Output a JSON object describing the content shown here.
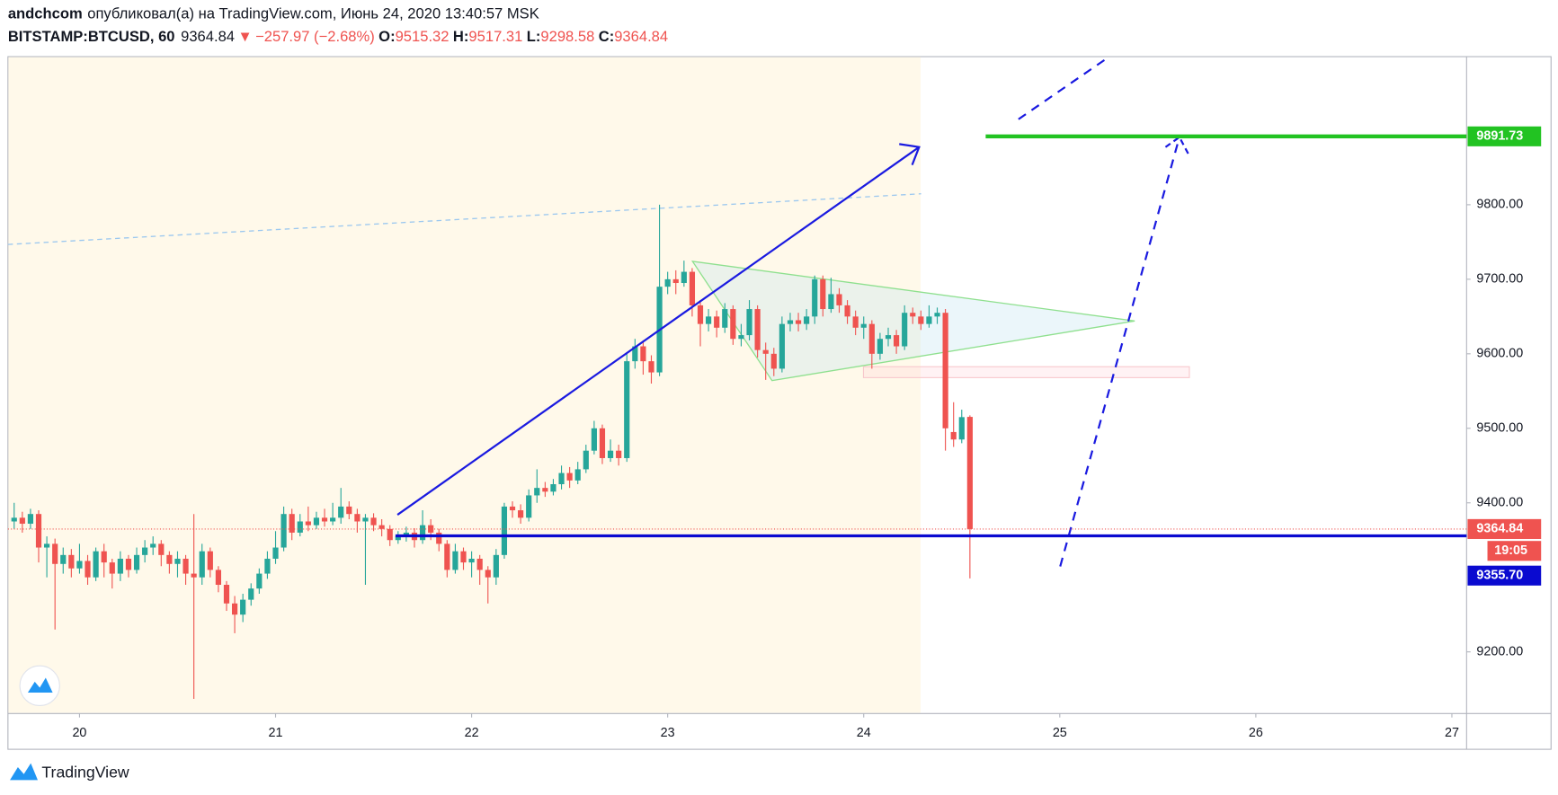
{
  "header": {
    "author": "andchcom",
    "published": "опубликовал(а) на TradingView.com, Июнь 24, 2020 13:40:57 MSK",
    "symbol": "BITSTAMP:BTCUSD, 60",
    "last": "9364.84",
    "arrow": "▼",
    "change": "−257.97 (−2.68%)",
    "o_label": "O:",
    "o": "9515.32",
    "h_label": "H:",
    "h": "9517.31",
    "l_label": "L:",
    "l": "9298.58",
    "c_label": "C:",
    "c": "9364.84"
  },
  "footer": {
    "brand": "TradingView"
  },
  "chart_data": {
    "type": "candlestick",
    "x": [
      -8,
      -7,
      -6,
      -5,
      -4,
      -3,
      -2,
      -1,
      0,
      1,
      2,
      3,
      4,
      5,
      6,
      7,
      8,
      9,
      10,
      11,
      12,
      13,
      14,
      15,
      16,
      17,
      18,
      19,
      20,
      21,
      22,
      23,
      24,
      25,
      26,
      27,
      28,
      29,
      30,
      31,
      32,
      33,
      34,
      35,
      36,
      37,
      38,
      39,
      40,
      41,
      42,
      43,
      44,
      45,
      46,
      47,
      48,
      49,
      50,
      51,
      52,
      53,
      54,
      55,
      56,
      57,
      58,
      59,
      60,
      61,
      62,
      63,
      64,
      65,
      66,
      67,
      68,
      69,
      70,
      71,
      72,
      73,
      74,
      75,
      76,
      77,
      78,
      79,
      80,
      81,
      82,
      83,
      84,
      85,
      86,
      87,
      88,
      89,
      90,
      91,
      92,
      93,
      94,
      95,
      96,
      97,
      98,
      99,
      100,
      101,
      102,
      103,
      104,
      105,
      106,
      107,
      108,
      109
    ],
    "open": [
      9375,
      9380,
      9372,
      9385,
      9340,
      9345,
      9318,
      9330,
      9312,
      9322,
      9300,
      9335,
      9320,
      9305,
      9325,
      9310,
      9330,
      9340,
      9345,
      9330,
      9318,
      9325,
      9305,
      9300,
      9335,
      9310,
      9290,
      9265,
      9250,
      9270,
      9285,
      9305,
      9325,
      9340,
      9385,
      9360,
      9375,
      9370,
      9380,
      9375,
      9380,
      9395,
      9385,
      9375,
      9380,
      9370,
      9365,
      9350,
      9355,
      9360,
      9350,
      9370,
      9360,
      9345,
      9310,
      9335,
      9320,
      9325,
      9310,
      9300,
      9330,
      9395,
      9390,
      9380,
      9410,
      9420,
      9415,
      9425,
      9440,
      9430,
      9445,
      9470,
      9500,
      9460,
      9470,
      9460,
      9590,
      9610,
      9590,
      9575,
      9690,
      9700,
      9695,
      9710,
      9665,
      9640,
      9650,
      9635,
      9660,
      9620,
      9625,
      9660,
      9605,
      9600,
      9580,
      9640,
      9645,
      9640,
      9650,
      9700,
      9660,
      9680,
      9665,
      9650,
      9635,
      9640,
      9600,
      9620,
      9625,
      9610,
      9655,
      9650,
      9640,
      9650,
      9655,
      9495,
      9485,
      9515.32
    ],
    "high": [
      9400,
      9388,
      9392,
      9390,
      9355,
      9352,
      9340,
      9338,
      9345,
      9330,
      9340,
      9345,
      9325,
      9335,
      9330,
      9340,
      9350,
      9355,
      9350,
      9335,
      9335,
      9330,
      9385,
      9345,
      9340,
      9315,
      9295,
      9275,
      9278,
      9292,
      9312,
      9335,
      9362,
      9395,
      9392,
      9385,
      9395,
      9388,
      9392,
      9400,
      9420,
      9402,
      9392,
      9385,
      9386,
      9378,
      9370,
      9362,
      9368,
      9366,
      9390,
      9378,
      9365,
      9350,
      9345,
      9340,
      9335,
      9330,
      9315,
      9338,
      9400,
      9402,
      9398,
      9418,
      9445,
      9428,
      9432,
      9450,
      9448,
      9455,
      9478,
      9510,
      9505,
      9485,
      9478,
      9602,
      9620,
      9618,
      9598,
      9800,
      9710,
      9712,
      9725,
      9715,
      9672,
      9660,
      9658,
      9668,
      9665,
      9640,
      9672,
      9665,
      9615,
      9608,
      9650,
      9655,
      9655,
      9660,
      9705,
      9705,
      9702,
      9688,
      9672,
      9658,
      9650,
      9645,
      9628,
      9635,
      9632,
      9665,
      9662,
      9658,
      9665,
      9662,
      9660,
      9535,
      9525,
      9517.31
    ],
    "low": [
      9365,
      9360,
      9365,
      9320,
      9300,
      9230,
      9305,
      9300,
      9305,
      9290,
      9295,
      9300,
      9285,
      9295,
      9300,
      9305,
      9320,
      9330,
      9315,
      9305,
      9300,
      9290,
      9137,
      9290,
      9300,
      9280,
      9255,
      9225,
      9240,
      9262,
      9278,
      9298,
      9318,
      9335,
      9350,
      9355,
      9362,
      9365,
      9368,
      9370,
      9372,
      9378,
      9360,
      9290,
      9362,
      9355,
      9342,
      9345,
      9348,
      9340,
      9345,
      9350,
      9335,
      9300,
      9305,
      9310,
      9300,
      9290,
      9265,
      9290,
      9325,
      9380,
      9372,
      9375,
      9400,
      9408,
      9410,
      9418,
      9420,
      9425,
      9440,
      9465,
      9452,
      9455,
      9450,
      9455,
      9580,
      9572,
      9560,
      9570,
      9680,
      9680,
      9690,
      9650,
      9610,
      9630,
      9622,
      9628,
      9612,
      9610,
      9618,
      9595,
      9565,
      9570,
      9575,
      9630,
      9630,
      9632,
      9640,
      9650,
      9655,
      9655,
      9640,
      9625,
      9620,
      9580,
      9592,
      9610,
      9600,
      9605,
      9640,
      9632,
      9635,
      9640,
      9470,
      9475,
      9480,
      9298.58
    ],
    "close": [
      9380,
      9372,
      9385,
      9340,
      9345,
      9318,
      9330,
      9312,
      9322,
      9300,
      9335,
      9320,
      9305,
      9325,
      9310,
      9330,
      9340,
      9345,
      9330,
      9318,
      9325,
      9305,
      9300,
      9335,
      9310,
      9290,
      9265,
      9250,
      9270,
      9285,
      9305,
      9325,
      9340,
      9385,
      9360,
      9375,
      9370,
      9380,
      9375,
      9380,
      9395,
      9385,
      9375,
      9380,
      9370,
      9365,
      9350,
      9355,
      9360,
      9350,
      9370,
      9360,
      9345,
      9310,
      9335,
      9320,
      9325,
      9310,
      9300,
      9330,
      9395,
      9390,
      9380,
      9410,
      9420,
      9415,
      9425,
      9440,
      9430,
      9445,
      9470,
      9500,
      9460,
      9470,
      9460,
      9590,
      9610,
      9590,
      9575,
      9690,
      9700,
      9695,
      9710,
      9665,
      9640,
      9650,
      9635,
      9660,
      9620,
      9625,
      9660,
      9605,
      9600,
      9580,
      9640,
      9645,
      9640,
      9650,
      9700,
      9660,
      9680,
      9665,
      9650,
      9635,
      9640,
      9600,
      9620,
      9625,
      9610,
      9655,
      9650,
      9640,
      9650,
      9655,
      9500,
      9485,
      9515,
      9364.84
    ],
    "up_color": "#26a69a",
    "down_color": "#ef5350",
    "xlim": [
      -8.76,
      169.8
    ],
    "xticks": [
      {
        "value": 0,
        "label": "20"
      },
      {
        "value": 24,
        "label": "21"
      },
      {
        "value": 48,
        "label": "22"
      },
      {
        "value": 72,
        "label": "23"
      },
      {
        "value": 96,
        "label": "24"
      },
      {
        "value": 120,
        "label": "25"
      },
      {
        "value": 144,
        "label": "26"
      },
      {
        "value": 168,
        "label": "27"
      }
    ],
    "ylim": [
      9117.3,
      9998.7
    ],
    "yticks": [
      {
        "value": 9200,
        "label": "9200.00"
      },
      {
        "value": 9400,
        "label": "9400.00"
      },
      {
        "value": 9500,
        "label": "9500.00"
      },
      {
        "value": 9600,
        "label": "9600.00"
      },
      {
        "value": 9700,
        "label": "9700.00"
      },
      {
        "value": 9800,
        "label": "9800.00"
      }
    ],
    "levels": [
      {
        "value": 9891.73,
        "label": "9891.73",
        "color": "#22c322"
      },
      {
        "value": 9355.7,
        "label": "9355.70",
        "color": "#0a0ad0"
      }
    ],
    "countdown": "19:05"
  }
}
